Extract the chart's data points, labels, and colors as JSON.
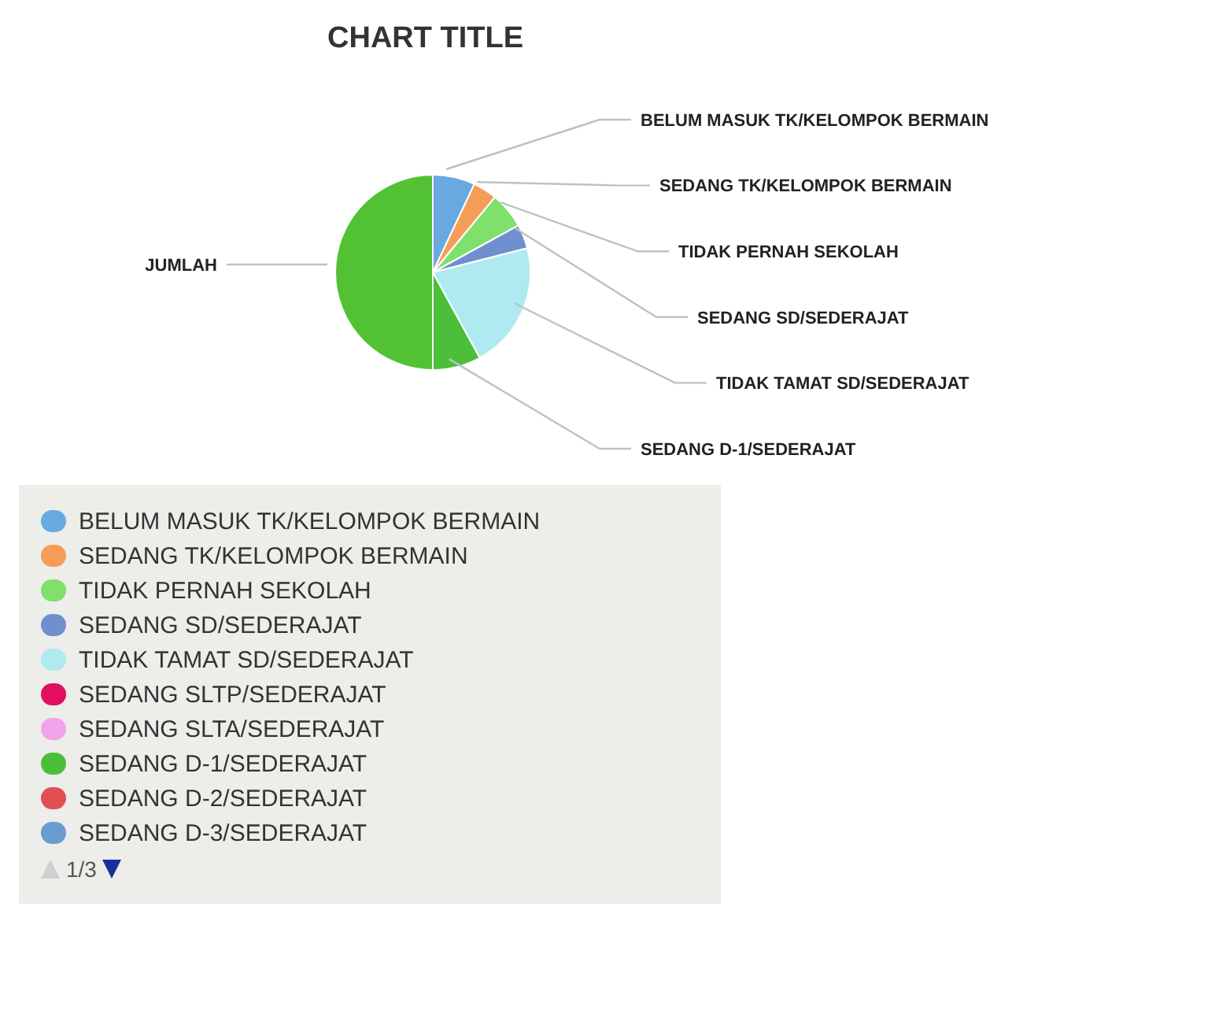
{
  "chart_data": {
    "type": "pie",
    "title": "CHART TITLE",
    "categories": [
      "BELUM MASUK TK/KELOMPOK BERMAIN",
      "SEDANG TK/KELOMPOK BERMAIN",
      "TIDAK PERNAH SEKOLAH",
      "SEDANG SD/SEDERAJAT",
      "TIDAK TAMAT SD/SEDERAJAT",
      "SEDANG SLTP/SEDERAJAT",
      "SEDANG SLTA/SEDERAJAT",
      "SEDANG D-1/SEDERAJAT",
      "SEDANG D-2/SEDERAJAT",
      "SEDANG D-3/SEDERAJAT",
      "JUMLAH"
    ],
    "values": [
      7,
      4,
      6,
      4,
      21,
      0,
      0,
      8,
      0,
      0,
      50
    ],
    "colors": [
      "#68a9e0",
      "#f59d56",
      "#7fe06c",
      "#6f8fcf",
      "#aeeaf0",
      "#e0105f",
      "#f2a2ea",
      "#4cbf3a",
      "#e05050",
      "#6a9ccf",
      "#52c234"
    ],
    "legend": "bottom",
    "annotations": [
      "1/3"
    ]
  }
}
